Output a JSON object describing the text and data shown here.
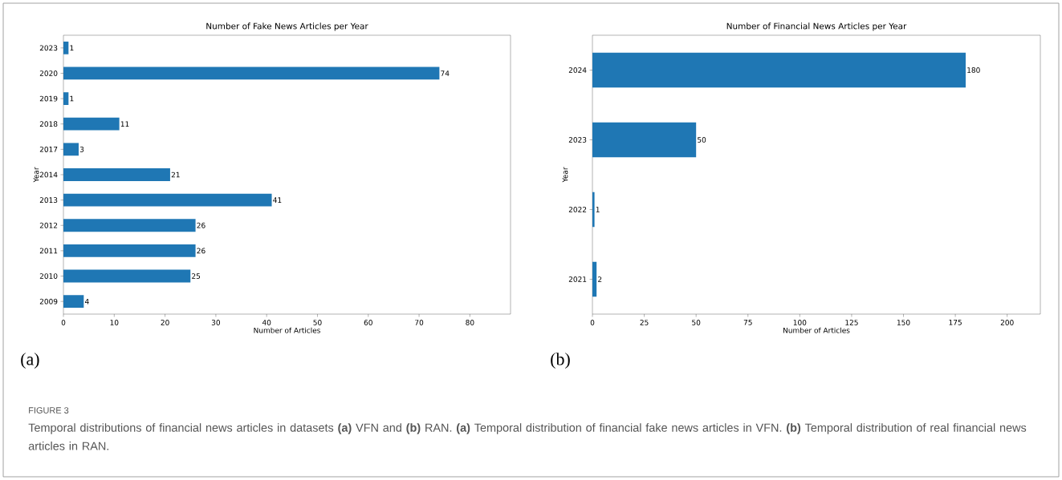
{
  "chart_data": [
    {
      "type": "bar",
      "orientation": "horizontal",
      "title": "Number of Fake News Articles per Year",
      "xlabel": "Number of Articles",
      "ylabel": "Year",
      "categories": [
        "2023",
        "2020",
        "2019",
        "2018",
        "2017",
        "2014",
        "2013",
        "2012",
        "2011",
        "2010",
        "2009"
      ],
      "values": [
        1,
        74,
        1,
        11,
        3,
        21,
        41,
        26,
        26,
        25,
        4
      ],
      "color": "#1f77b4",
      "data_labels": true,
      "xlim": [
        0,
        88
      ],
      "xticks": [
        0,
        10,
        20,
        30,
        40,
        50,
        60,
        70,
        80
      ],
      "annotations": [
        "(a)"
      ]
    },
    {
      "type": "bar",
      "orientation": "horizontal",
      "title": "Number of Financial News Articles per Year",
      "xlabel": "Number of Articles",
      "ylabel": "Year",
      "categories": [
        "2024",
        "2023",
        "2022",
        "2021"
      ],
      "values": [
        180,
        50,
        1,
        2
      ],
      "color": "#1f77b4",
      "data_labels": true,
      "xlim": [
        0,
        216
      ],
      "xticks": [
        0,
        25,
        50,
        75,
        100,
        125,
        150,
        175,
        200
      ],
      "annotations": [
        "(b)",
        "FIGURE 3",
        "Temporal distributions of financial news articles in datasets **(a)** VFN and **(b)** RAN. **(a)** Temporal distribution of financial fake news articles in VFN. **(b)** Temporal distribution of real financial news articles in RAN."
      ]
    }
  ]
}
